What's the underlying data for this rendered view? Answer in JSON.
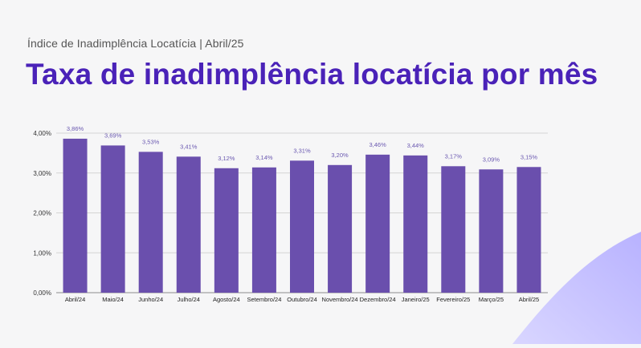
{
  "header": {
    "subtitle": "Índice de Inadimplência Locatícia | Abril/25",
    "title": "Taxa de inadimplência locatícia por mês"
  },
  "colors": {
    "accent": "#4a22b8",
    "bar": "#6a4fad",
    "label": "#6a58b0",
    "decor_start": "#d9d6ff",
    "decor_end": "#b8b2ff"
  },
  "chart_data": {
    "type": "bar",
    "categories": [
      "Abril/24",
      "Maio/24",
      "Junho/24",
      "Julho/24",
      "Agosto/24",
      "Setembro/24",
      "Outubro/24",
      "Novembro/24",
      "Dezembro/24",
      "Janeiro/25",
      "Fevereiro/25",
      "Março/25",
      "Abril/25"
    ],
    "values": [
      3.86,
      3.69,
      3.53,
      3.41,
      3.12,
      3.14,
      3.31,
      3.2,
      3.46,
      3.44,
      3.17,
      3.09,
      3.15
    ],
    "value_labels": [
      "3,86%",
      "3,69%",
      "3,53%",
      "3,41%",
      "3,12%",
      "3,14%",
      "3,31%",
      "3,20%",
      "3,46%",
      "3,44%",
      "3,17%",
      "3,09%",
      "3,15%"
    ],
    "yticks": [
      0,
      1,
      2,
      3,
      4
    ],
    "ytick_labels": [
      "0,00%",
      "1,00%",
      "2,00%",
      "3,00%",
      "4,00%"
    ],
    "ylim": [
      0,
      4
    ],
    "grid": true,
    "legend": false
  }
}
